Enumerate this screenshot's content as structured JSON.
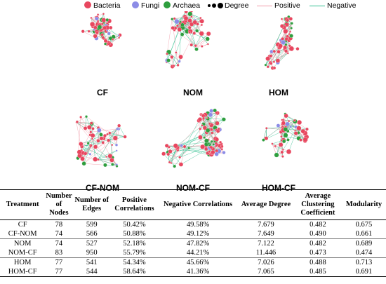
{
  "legend": {
    "bacteria": "Bacteria",
    "fungi": "Fungi",
    "archaea": "Archaea",
    "degree": "Degree",
    "positive": "Positive",
    "negative": "Negative"
  },
  "colors": {
    "bacteria": "#e8475f",
    "fungi": "#8c8ce6",
    "archaea": "#2e9e3e",
    "positive": "#f09aa8",
    "negative": "#2fbf8f"
  },
  "networks": [
    "CF",
    "NOM",
    "HOM",
    "CF-NOM",
    "NOM-CF",
    "HOM-CF"
  ],
  "table": {
    "headers": [
      "Treatment",
      "Number of Nodes",
      "Number of Edges",
      "Positive Correlations",
      "Negative Correlations",
      "Average Degree",
      "Average Clustering Coefficient",
      "Modularity"
    ],
    "rows": [
      [
        "CF",
        "78",
        "599",
        "50.42%",
        "49.58%",
        "7.679",
        "0.482",
        "0.675"
      ],
      [
        "CF-NOM",
        "74",
        "566",
        "50.88%",
        "49.12%",
        "7.649",
        "0.490",
        "0.661"
      ],
      [
        "NOM",
        "74",
        "527",
        "52.18%",
        "47.82%",
        "7.122",
        "0.482",
        "0.689"
      ],
      [
        "NOM-CF",
        "83",
        "950",
        "55.79%",
        "44.21%",
        "11.446",
        "0.473",
        "0.474"
      ],
      [
        "HOM",
        "77",
        "541",
        "54.34%",
        "45.66%",
        "7.026",
        "0.488",
        "0.713"
      ],
      [
        "HOM-CF",
        "77",
        "544",
        "58.64%",
        "41.36%",
        "7.065",
        "0.485",
        "0.691"
      ]
    ]
  }
}
